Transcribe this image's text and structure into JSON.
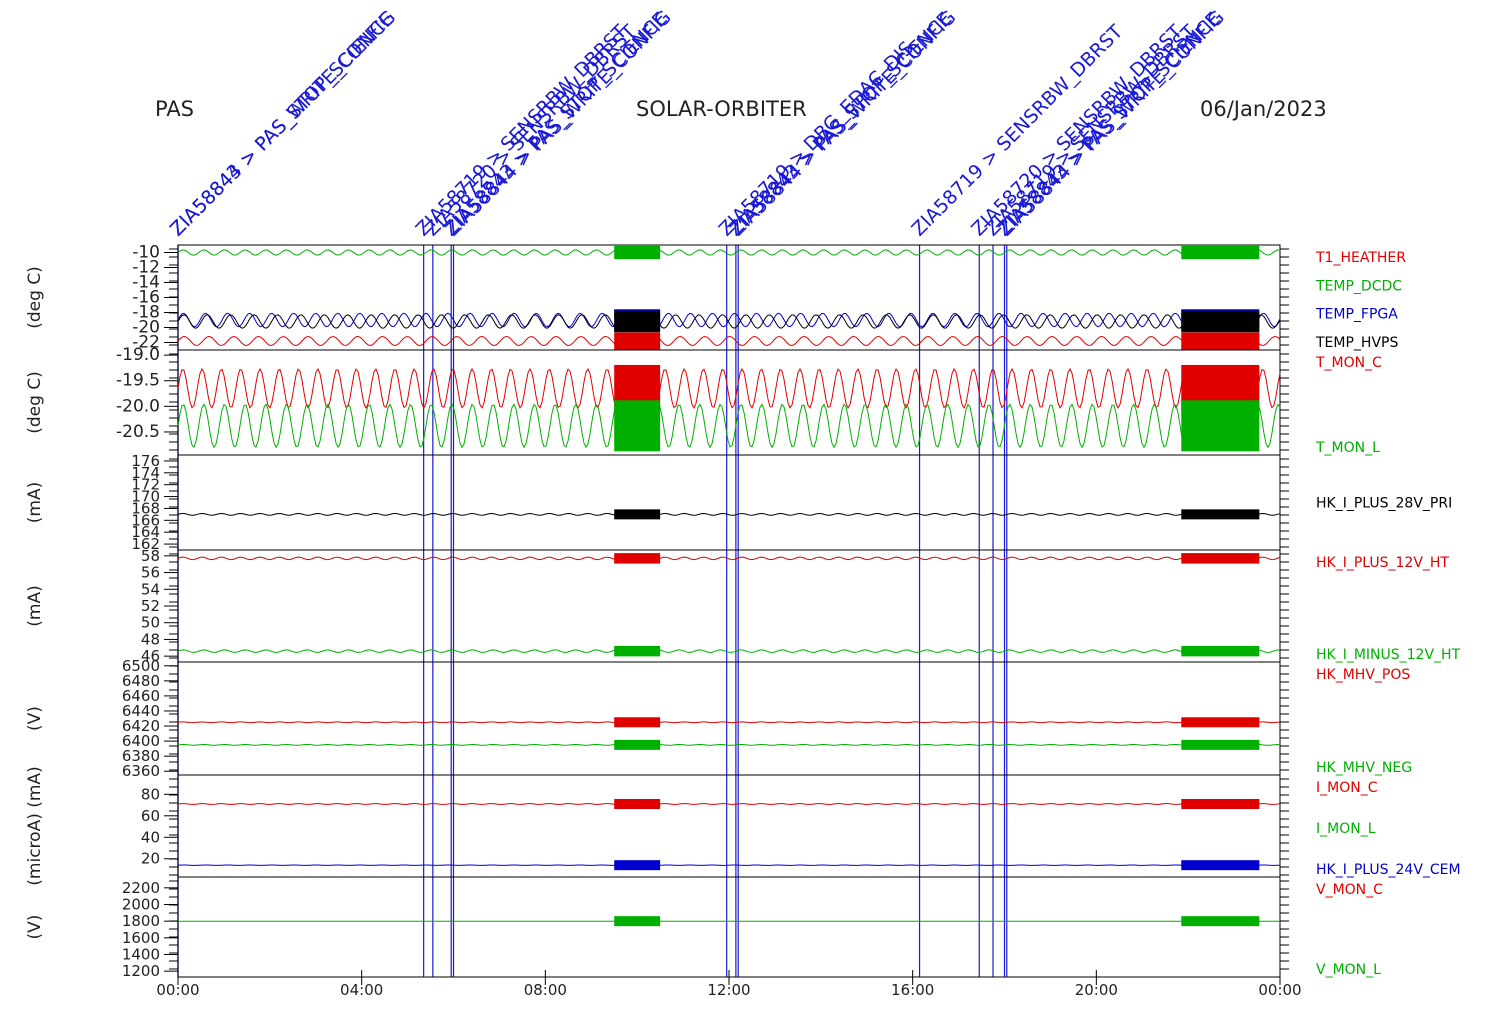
{
  "header": {
    "left": "PAS",
    "center": "SOLAR-ORBITER",
    "right": "06/Jan/2023"
  },
  "colors": {
    "red": "#e00000",
    "green": "#00b000",
    "blue": "#0000d0",
    "black": "#000000",
    "event": "#1a1ad6"
  },
  "chart_data": {
    "type": "line",
    "x_axis": {
      "ticks": [
        "00:00",
        "04:00",
        "08:00",
        "12:00",
        "16:00",
        "20:00",
        "00:00"
      ],
      "range_hours": [
        0,
        24
      ]
    },
    "events": [
      {
        "hour": 0.0,
        "label": "ZIA58843 > PAS_STOP_SCIENCE"
      },
      {
        "hour": 0.0,
        "label": "ZIA58844 > PAS_WRITE_CONFIG"
      },
      {
        "hour": 5.35,
        "label": "ZIA58719 > SENSRBW_DBRST"
      },
      {
        "hour": 5.55,
        "label": "ZIA58720 > SENSRBW_DBRST"
      },
      {
        "hour": 5.95,
        "label": "ZIA58843 > PAS_STOP_SCIENCE"
      },
      {
        "hour": 6.0,
        "label": "ZIA58844 > PAS_WRITE_CONFIG"
      },
      {
        "hour": 11.95,
        "label": "ZIA58719 > DBG_EDAC_DIS"
      },
      {
        "hour": 12.15,
        "label": "ZIA58843 > PAS_STOP_SCIENCE"
      },
      {
        "hour": 12.2,
        "label": "ZIA58844 > PAS_WRITE_CONFIG"
      },
      {
        "hour": 16.15,
        "label": "ZIA58719 > SENSRBW_DBRST"
      },
      {
        "hour": 17.45,
        "label": "ZIA58720 > SENSRBW_DBRST"
      },
      {
        "hour": 17.75,
        "label": "ZIA58719 > SENSRBW_DBRST"
      },
      {
        "hour": 18.0,
        "label": "ZIA58843 > PAS_STOP_SCIENCE"
      },
      {
        "hour": 18.05,
        "label": "ZIA58844 > PAS_WRITE_CONFIG"
      }
    ],
    "panels": [
      {
        "ylabel": "(deg C)",
        "yticks": [
          "-10",
          "-12",
          "-14",
          "-16",
          "-18",
          "-20",
          "-22"
        ],
        "ylim": [
          -23,
          -9
        ],
        "big_ticks": true,
        "series": [
          {
            "name": "T1_HEATHER",
            "color": "red",
            "mean": null,
            "amp": 0
          },
          {
            "name": "TEMP_DCDC",
            "color": "green",
            "mean": -10,
            "amp": 0.35
          },
          {
            "name": "TEMP_FPGA",
            "color": "blue",
            "mean": -19,
            "amp": 0.9
          },
          {
            "name": "TEMP_HVPS",
            "color": "black",
            "mean": -19.2,
            "amp": 0.9
          },
          {
            "name": "",
            "color": "red",
            "mean": -21.8,
            "amp": 0.6,
            "legend": false
          }
        ]
      },
      {
        "ylabel": "(deg C)",
        "yticks": [
          "-19.0",
          "-19.5",
          "-20.0",
          "-20.5"
        ],
        "ylim": [
          -20.95,
          -18.9
        ],
        "big_ticks": true,
        "series": [
          {
            "name": "T_MON_C",
            "color": "red",
            "mean": -19.65,
            "amp": 0.38
          },
          {
            "name": "T_MON_L",
            "color": "green",
            "mean": -20.38,
            "amp": 0.42
          }
        ]
      },
      {
        "ylabel": "(mA)",
        "yticks": [
          "176",
          "174",
          "172",
          "170",
          "168",
          "166",
          "164",
          "162"
        ],
        "ylim": [
          161,
          177
        ],
        "big_ticks": false,
        "series": [
          {
            "name": "HK_I_PLUS_28V_PRI",
            "color": "black",
            "mean": 167,
            "amp": 0.15
          }
        ]
      },
      {
        "ylabel": "(mA)",
        "yticks": [
          "58",
          "56",
          "54",
          "52",
          "50",
          "48",
          "46"
        ],
        "ylim": [
          45.3,
          58.7
        ],
        "big_ticks": false,
        "series": [
          {
            "name": "HK_I_PLUS_12V_HT",
            "color": "red",
            "mean": 57.7,
            "amp": 0.15
          },
          {
            "name": "HK_I_MINUS_12V_HT",
            "color": "green",
            "mean": 46.6,
            "amp": 0.15
          }
        ]
      },
      {
        "ylabel": "(V)",
        "yticks": [
          "6500",
          "6480",
          "6460",
          "6440",
          "6420",
          "6400",
          "6380",
          "6360"
        ],
        "ylim": [
          6355,
          6505
        ],
        "big_ticks": false,
        "series": [
          {
            "name": "HK_MHV_POS",
            "color": "red",
            "mean": 6425,
            "amp": 0.5
          },
          {
            "name": "HK_MHV_NEG",
            "color": "green",
            "mean": 6395,
            "amp": 0.5
          }
        ]
      },
      {
        "ylabel": "(microA) (mA)",
        "yticks": [
          "80",
          "60",
          "40",
          "20"
        ],
        "ylim": [
          3,
          98
        ],
        "big_ticks": false,
        "series": [
          {
            "name": "I_MON_C",
            "color": "red",
            "mean": 71,
            "amp": 0.4
          },
          {
            "name": "I_MON_L",
            "color": "green",
            "mean": null,
            "amp": 0
          },
          {
            "name": "HK_I_PLUS_24V_CEM",
            "color": "blue",
            "mean": 14,
            "amp": 0.2
          }
        ]
      },
      {
        "ylabel": "(V)",
        "yticks": [
          "2200",
          "2000",
          "1800",
          "1600",
          "1400",
          "1200"
        ],
        "ylim": [
          1130,
          2330
        ],
        "big_ticks": false,
        "series": [
          {
            "name": "V_MON_C",
            "color": "red",
            "mean": null,
            "amp": 0
          },
          {
            "name": "V_MON_L",
            "color": "green",
            "mean": 1800,
            "amp": 0
          }
        ]
      }
    ]
  }
}
